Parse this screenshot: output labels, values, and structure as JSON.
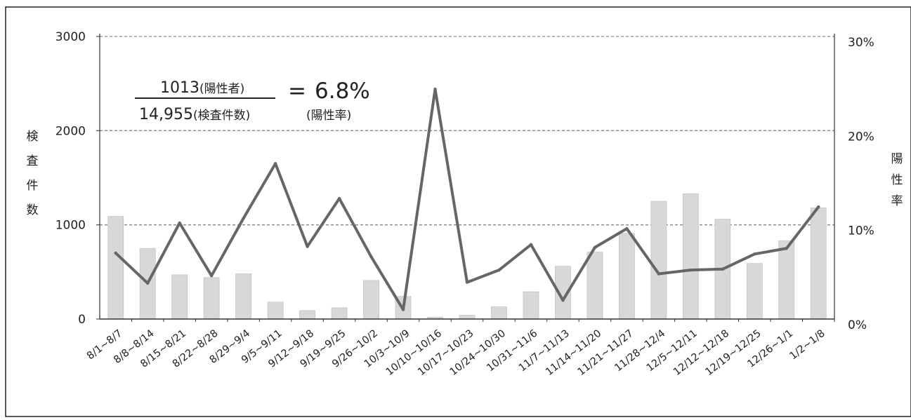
{
  "chart_data": {
    "type": "bar+line",
    "categories": [
      "8/1~8/7",
      "8/8~8/14",
      "8/15~8/21",
      "8/22~8/28",
      "8/29~9/4",
      "9/5~9/11",
      "9/12~9/18",
      "9/19~9/25",
      "9/26~10/2",
      "10/3~10/9",
      "10/10~10/16",
      "10/17~10/23",
      "10/24~10/30",
      "10/31~11/6",
      "11/7~11/13",
      "11/14~11/20",
      "11/21~11/27",
      "11/28~12/4",
      "12/5~12/11",
      "12/12~12/18",
      "12/19~12/25",
      "12/26~1/1",
      "1/2~1/8"
    ],
    "series": [
      {
        "type": "bar",
        "axis": "left",
        "values": [
          1090,
          750,
          470,
          440,
          480,
          180,
          90,
          120,
          410,
          240,
          20,
          40,
          130,
          290,
          560,
          710,
          910,
          1250,
          1330,
          1060,
          590,
          830,
          1180
        ]
      },
      {
        "type": "line",
        "axis": "right",
        "values": [
          7.0,
          3.8,
          10.2,
          4.6,
          10.7,
          16.5,
          7.7,
          12.8,
          6.6,
          1.0,
          24.4,
          3.9,
          5.2,
          7.9,
          2.0,
          7.6,
          9.6,
          4.8,
          5.2,
          5.3,
          6.9,
          7.5,
          11.9
        ]
      }
    ],
    "y_left": {
      "label": "検査件数",
      "ticks": [
        "0",
        "1000",
        "2000",
        "3000"
      ],
      "lim": [
        0,
        3000
      ]
    },
    "y_right": {
      "label": "陽性率",
      "ticks": [
        "0%",
        "10%",
        "20%",
        "30%"
      ],
      "lim": [
        0,
        30
      ]
    },
    "grid": true,
    "bar_color": "#d8d8d8",
    "line_color": "#666666",
    "grid_color": "#888888"
  },
  "annotation": {
    "numerator": "1013",
    "numerator_unit": "(陽性者)",
    "denominator": "14,955",
    "denominator_unit": "(検査件数)",
    "equals": "=",
    "result": "6.8%",
    "result_label": "(陽性率)"
  }
}
